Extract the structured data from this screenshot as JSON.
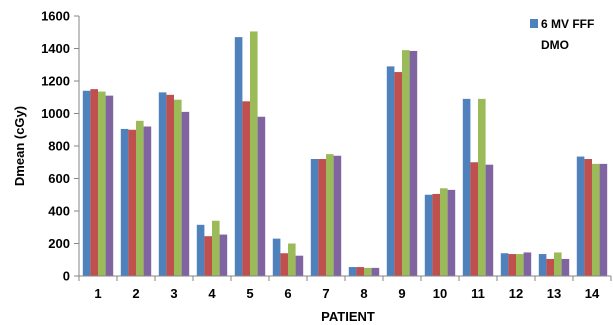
{
  "chart_data": {
    "type": "bar",
    "title": "",
    "xlabel": "PATIENT",
    "ylabel": "Dmean (cGy)",
    "ylim": [
      0,
      1600
    ],
    "yticks": [
      0,
      200,
      400,
      600,
      800,
      1000,
      1200,
      1400,
      1600
    ],
    "grid": false,
    "legend_position": "top-right",
    "categories": [
      "1",
      "2",
      "3",
      "4",
      "5",
      "6",
      "7",
      "8",
      "9",
      "10",
      "11",
      "12",
      "13",
      "14"
    ],
    "series": [
      {
        "name": "6 MV FFF",
        "color": "#4F81BD",
        "values": [
          1140,
          905,
          1130,
          315,
          1470,
          230,
          720,
          55,
          1290,
          500,
          1090,
          140,
          135,
          735
        ]
      },
      {
        "name": "DMO",
        "color": "#C0504D",
        "values": [
          1150,
          900,
          1115,
          245,
          1075,
          140,
          720,
          55,
          1255,
          505,
          700,
          135,
          105,
          720
        ]
      },
      {
        "name": "",
        "color": "#9BBB59",
        "values": [
          1135,
          955,
          1085,
          340,
          1505,
          200,
          750,
          50,
          1390,
          540,
          1090,
          135,
          145,
          690
        ]
      },
      {
        "name": "",
        "color": "#8064A2",
        "values": [
          1110,
          920,
          1010,
          255,
          980,
          125,
          740,
          50,
          1385,
          530,
          685,
          145,
          105,
          690
        ]
      }
    ]
  }
}
